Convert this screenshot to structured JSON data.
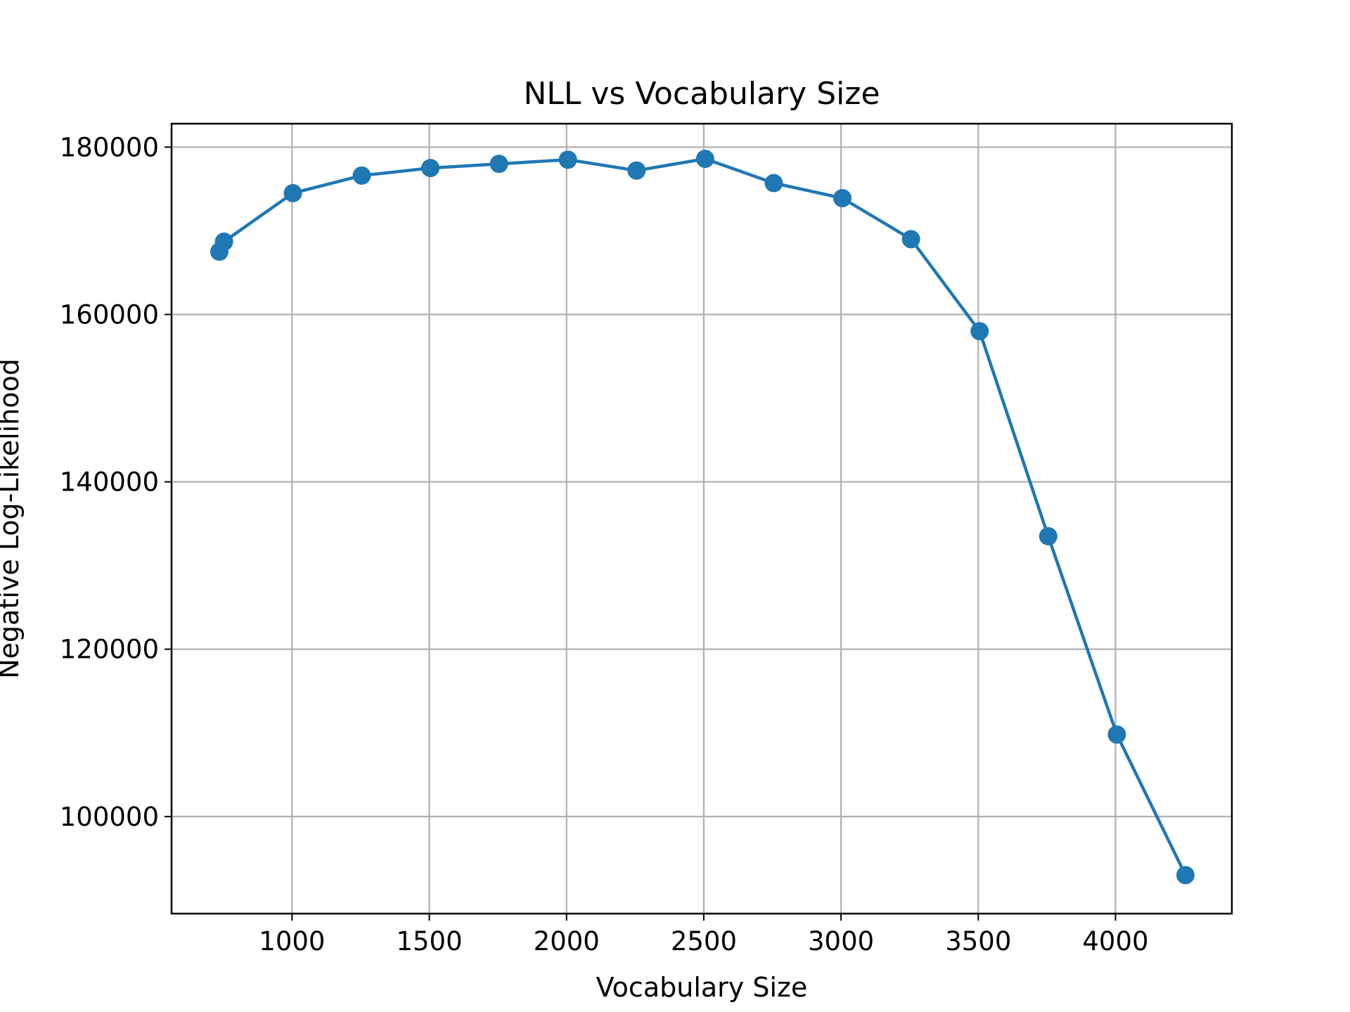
{
  "chart_data": {
    "type": "line",
    "title": "NLL vs Vocabulary Size",
    "xlabel": "Vocabulary Size",
    "ylabel": "Negative Log-Likelihood",
    "xlim": [
      561,
      4424
    ],
    "ylim": [
      88400,
      182800
    ],
    "xticks": [
      1000,
      1500,
      2000,
      2500,
      3000,
      3500,
      4000
    ],
    "yticks": [
      100000,
      120000,
      140000,
      160000,
      180000
    ],
    "grid": true,
    "series": [
      {
        "color": "#1f77b4",
        "marker": "circle",
        "x": [
          735,
          752,
          1003,
          1254,
          1504,
          1754,
          2005,
          2255,
          2505,
          2755,
          3005,
          3255,
          3505,
          3755,
          4005,
          4255
        ],
        "y": [
          167500,
          168700,
          174500,
          176600,
          177500,
          178000,
          178500,
          177200,
          178600,
          175700,
          173900,
          169000,
          158000,
          133500,
          109800,
          93000
        ]
      }
    ]
  }
}
